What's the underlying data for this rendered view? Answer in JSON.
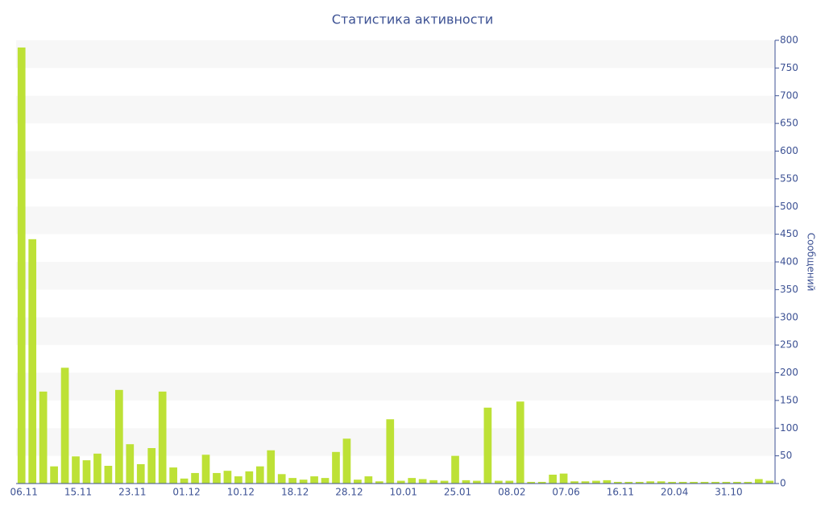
{
  "chart_data": {
    "type": "bar",
    "title": "Статистика активности",
    "y_label": "Сообщений",
    "categories": [
      "06.11",
      null,
      null,
      null,
      null,
      "15.11",
      null,
      null,
      null,
      null,
      "23.11",
      null,
      null,
      null,
      null,
      "01.12",
      null,
      null,
      null,
      null,
      "10.12",
      null,
      null,
      null,
      null,
      "18.12",
      null,
      null,
      null,
      null,
      "28.12",
      null,
      null,
      null,
      null,
      "10.01",
      null,
      null,
      null,
      null,
      "25.01",
      null,
      null,
      null,
      null,
      "08.02",
      null,
      null,
      null,
      null,
      "07.06",
      null,
      null,
      null,
      null,
      "16.11",
      null,
      null,
      null,
      null,
      "20.04",
      null,
      null,
      null,
      null,
      "31.10",
      null,
      null,
      null,
      null
    ],
    "values": [
      787,
      441,
      166,
      31,
      209,
      49,
      42,
      54,
      32,
      169,
      71,
      35,
      64,
      166,
      29,
      9,
      19,
      52,
      19,
      23,
      13,
      22,
      31,
      60,
      17,
      10,
      7,
      13,
      10,
      57,
      81,
      7,
      13,
      4,
      116,
      5,
      10,
      8,
      6,
      5,
      50,
      6,
      5,
      137,
      5,
      5,
      148,
      3,
      3,
      16,
      18,
      4,
      4,
      5,
      6,
      3,
      3,
      3,
      4,
      4,
      3,
      3,
      3,
      3,
      3,
      3,
      3,
      3,
      8,
      5
    ],
    "color": "#bde136",
    "ylim": [
      0,
      800
    ],
    "yticks": [
      0,
      50,
      100,
      150,
      200,
      250,
      300,
      350,
      400,
      450,
      500,
      550,
      600,
      650,
      700,
      750,
      800
    ],
    "grid": "bands",
    "y_axis_side": "right"
  }
}
